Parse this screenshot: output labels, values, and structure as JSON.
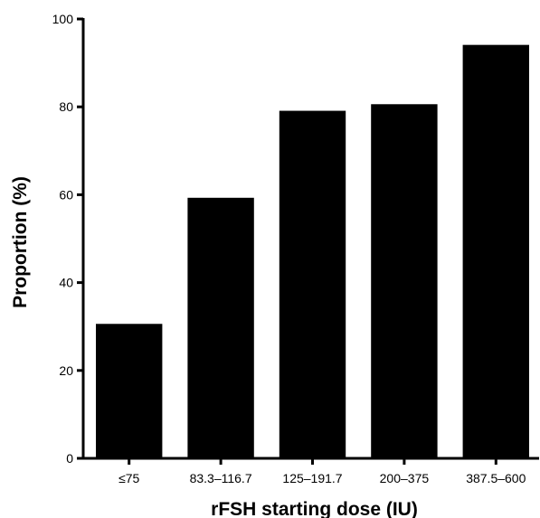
{
  "chart_data": {
    "type": "bar",
    "categories": [
      "≤75",
      "83.3–116.7",
      "125–191.7",
      "200–375",
      "387.5–600"
    ],
    "values": [
      30.5,
      59.2,
      79.0,
      80.5,
      94.0
    ],
    "title": "",
    "xlabel": "rFSH starting dose (IU)",
    "ylabel": "Proportion (%)",
    "ylim": [
      0,
      100
    ],
    "yticks": [
      "0",
      "20",
      "40",
      "60",
      "80",
      "100"
    ],
    "grid": false,
    "legend": "none",
    "colors": {
      "bar": "#000000",
      "axis": "#000000",
      "background": "#ffffff"
    }
  }
}
